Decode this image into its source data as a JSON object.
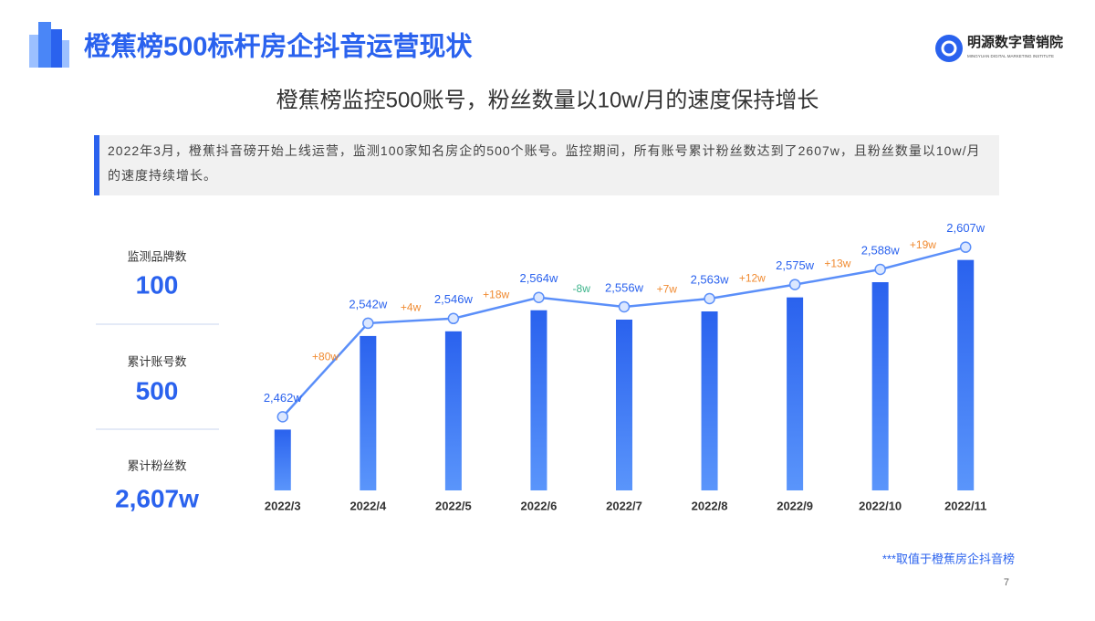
{
  "header": {
    "title": "橙蕉榜500标杆房企抖音运营现状",
    "logo": "明源数字营销院",
    "logo_subtitle": "MINGYUAN DIGITAL MARKETING INSTITUTE"
  },
  "description": "2022年3月，橙蕉抖音磅开始上线运营，监测100家知名房企的500个账号。监控期间，所有账号累计粉丝数达到了2607w，且粉丝数量以10w/月的速度持续增长。",
  "stats": [
    {
      "label": "监测品牌数",
      "value": 100
    },
    {
      "label": "累计账号数",
      "value": 500
    },
    {
      "label": "累计粉丝数",
      "value": "2,607w"
    }
  ],
  "chart_data": {
    "type": "bar-line",
    "title": "橙蕉榜监控500账号，粉丝数量以10w/月的速度保持增长",
    "categories": [
      "2022/3",
      "2022/4",
      "2022/5",
      "2022/6",
      "2022/7",
      "2022/8",
      "2022/9",
      "2022/10",
      "2022/11"
    ],
    "values": [
      2462,
      2542,
      2546,
      2564,
      2556,
      2563,
      2575,
      2588,
      2607
    ],
    "value_labels": [
      "2,462w",
      "2,542w",
      "2,546w",
      "2,564w",
      "2,556w",
      "2,563w",
      "2,575w",
      "2,588w",
      "2,607w"
    ],
    "changes": {
      "values": [
        80,
        4,
        18,
        -8,
        7,
        12,
        13,
        19
      ],
      "value_labels": [
        "+80w",
        "+4w",
        "+18w",
        "-8w",
        "+7w",
        "+12w",
        "+13w",
        "+19w"
      ]
    },
    "color": "#2f6cf0",
    "ylim": [
      2410,
      2620
    ]
  },
  "note": "***取值于橙蕉房企抖音榜",
  "page_number": "7"
}
